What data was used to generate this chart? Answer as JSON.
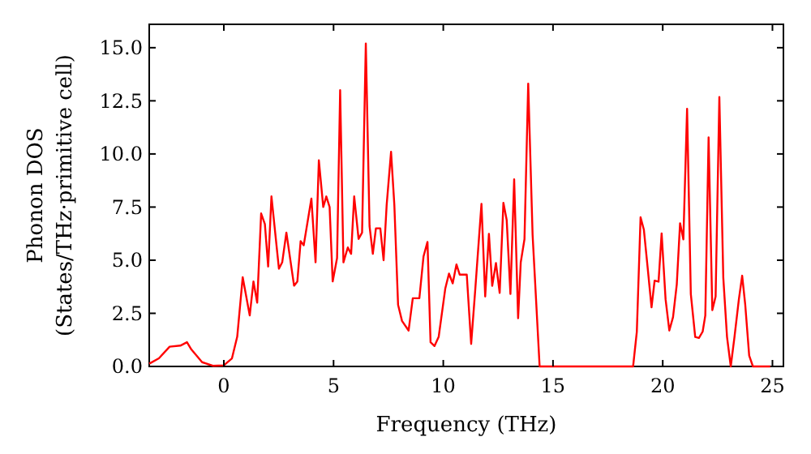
{
  "chart_data": {
    "type": "line",
    "xlabel": "Frequency (THz)",
    "ylabel": "Phonon DOS\n(States/THz·primitive cell)",
    "xlim": [
      -3.4,
      25.5
    ],
    "ylim": [
      0,
      16.1
    ],
    "xticks": [
      0,
      5,
      10,
      15,
      20,
      25
    ],
    "yticks": [
      {
        "value": 0,
        "label": "0.0"
      },
      {
        "value": 2.5,
        "label": "2.5"
      },
      {
        "value": 5,
        "label": "5.0"
      },
      {
        "value": 7.5,
        "label": "7.5"
      },
      {
        "value": 10,
        "label": "10.0"
      },
      {
        "value": 12.5,
        "label": "12.5"
      },
      {
        "value": 15,
        "label": "15.0"
      }
    ],
    "grid": false,
    "marker": "none",
    "line_style": "solid",
    "series": [
      {
        "color": "#ff0000",
        "x": [
          -3.4,
          -2.96,
          -2.47,
          -1.98,
          -1.68,
          -1.48,
          -0.99,
          -0.5,
          0,
          0.37,
          0.61,
          0.86,
          1.18,
          1.35,
          1.52,
          1.7,
          1.87,
          2.02,
          2.17,
          2.51,
          2.66,
          2.85,
          3.2,
          3.35,
          3.5,
          3.64,
          3.99,
          4.18,
          4.33,
          4.53,
          4.67,
          4.82,
          4.96,
          5.16,
          5.3,
          5.45,
          5.65,
          5.8,
          5.94,
          6.14,
          6.3,
          6.47,
          6.64,
          6.79,
          6.93,
          7.13,
          7.28,
          7.42,
          7.62,
          7.77,
          7.94,
          8.12,
          8.42,
          8.61,
          8.91,
          9.1,
          9.28,
          9.42,
          9.6,
          9.79,
          10.09,
          10.26,
          10.43,
          10.6,
          10.75,
          11.07,
          11.27,
          11.46,
          11.74,
          11.91,
          12.08,
          12.23,
          12.4,
          12.57,
          12.74,
          12.89,
          13.06,
          13.23,
          13.41,
          13.53,
          13.7,
          13.87,
          14.07,
          14.39,
          18.65,
          18.82,
          18.99,
          19.14,
          19.31,
          19.49,
          19.63,
          19.81,
          19.95,
          20.13,
          20.3,
          20.47,
          20.64,
          20.79,
          20.94,
          21.11,
          21.28,
          21.48,
          21.65,
          21.82,
          21.94,
          22.09,
          22.26,
          22.41,
          22.58,
          22.76,
          22.93,
          23.1,
          23.27,
          23.47,
          23.62,
          23.76,
          23.94,
          24.11,
          24.9
        ],
        "values": [
          0.13,
          0.38,
          0.93,
          0.98,
          1.14,
          0.8,
          0.2,
          0.03,
          0.05,
          0.38,
          1.4,
          4.2,
          2.4,
          4.0,
          3.0,
          7.2,
          6.7,
          4.7,
          8.0,
          4.6,
          4.9,
          6.3,
          3.8,
          4.0,
          5.9,
          5.7,
          7.9,
          4.9,
          9.7,
          7.5,
          8.0,
          7.5,
          4.0,
          5.1,
          13.0,
          4.9,
          5.6,
          5.3,
          8.0,
          6.0,
          6.3,
          15.2,
          6.6,
          5.3,
          6.5,
          6.5,
          5.0,
          7.6,
          10.1,
          7.6,
          2.9,
          2.14,
          1.69,
          3.21,
          3.21,
          5.18,
          5.86,
          1.14,
          0.96,
          1.39,
          3.66,
          4.37,
          3.91,
          4.8,
          4.32,
          4.32,
          1.06,
          3.66,
          7.65,
          3.29,
          6.24,
          3.79,
          4.87,
          3.46,
          7.7,
          6.89,
          3.41,
          8.81,
          2.27,
          4.9,
          5.99,
          13.31,
          6.19,
          0,
          0,
          1.64,
          7.02,
          6.44,
          4.68,
          2.78,
          4.04,
          3.99,
          6.26,
          3.16,
          1.69,
          2.32,
          3.86,
          6.74,
          5.98,
          12.12,
          3.41,
          1.39,
          1.34,
          1.64,
          2.4,
          10.78,
          2.65,
          3.29,
          12.68,
          4.17,
          1.39,
          0,
          1.39,
          3.16,
          4.27,
          2.9,
          0.51,
          0,
          0
        ]
      }
    ]
  }
}
